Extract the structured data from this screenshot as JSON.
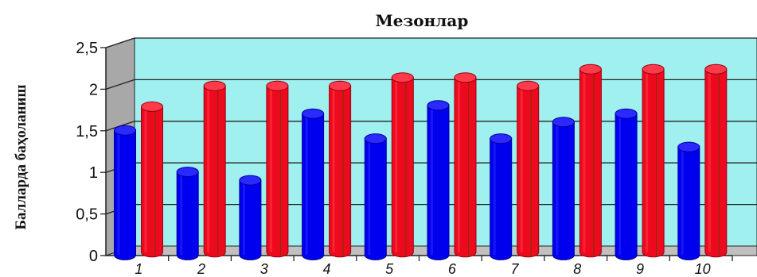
{
  "chart_data": {
    "type": "bar",
    "style": "3d-cylinder",
    "title": "Мезонлар",
    "ylabel": "Балларда  баҳоланиш",
    "xlabel": "",
    "categories": [
      "1",
      "2",
      "3",
      "4",
      "5",
      "6",
      "7",
      "8",
      "9",
      "10"
    ],
    "series": [
      {
        "color": "#0000ee",
        "values": [
          1.5,
          1.0,
          0.9,
          1.7,
          1.4,
          1.8,
          1.4,
          1.6,
          1.7,
          1.3
        ]
      },
      {
        "color": "#ee0a1e",
        "values": [
          1.75,
          2.0,
          2.0,
          2.0,
          2.1,
          2.1,
          2.0,
          2.2,
          2.2,
          2.2
        ]
      }
    ],
    "ylim": [
      0,
      2.5
    ],
    "y_ticks": [
      "0",
      "0,5",
      "1",
      "1,5",
      "2",
      "2,5"
    ],
    "y_tick_values": [
      0,
      0.5,
      1,
      1.5,
      2,
      2.5
    ],
    "grid": true,
    "legend": "none",
    "colors": {
      "back_wall": "#9ff0ef",
      "side_wall": "#a8a8a8",
      "floor": "#c0c0c0"
    }
  }
}
